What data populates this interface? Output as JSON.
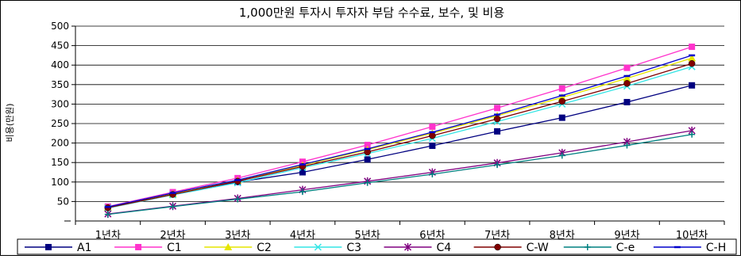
{
  "chart_data": {
    "type": "line",
    "title": "1,000만원 투자시 투자자 부담 수수료, 보수, 및 비용",
    "ylabel": "비용(만원)",
    "xlabel": "",
    "categories": [
      "1년차",
      "2년차",
      "3년차",
      "4년차",
      "5년차",
      "6년차",
      "7년차",
      "8년차",
      "9년차",
      "10년차"
    ],
    "ylim": [
      0,
      500
    ],
    "yticks": [
      50,
      100,
      150,
      200,
      250,
      300,
      350,
      400,
      450,
      500
    ],
    "grid": "horizontal",
    "legend_position": "bottom",
    "series": [
      {
        "name": "A1",
        "color": "#000080",
        "marker": "square",
        "values": [
          35,
          70,
          100,
          125,
          158,
          193,
          230,
          265,
          305,
          348
        ]
      },
      {
        "name": "C1",
        "color": "#ff33cc",
        "marker": "square",
        "values": [
          37,
          74,
          110,
          152,
          195,
          242,
          290,
          340,
          393,
          447
        ]
      },
      {
        "name": "C2",
        "color": "#e6e600",
        "marker": "triangle",
        "values": [
          34,
          69,
          104,
          143,
          183,
          225,
          270,
          317,
          366,
          418
        ]
      },
      {
        "name": "C3",
        "color": "#33e6e6",
        "marker": "x",
        "values": [
          33,
          67,
          98,
          137,
          173,
          212,
          255,
          300,
          346,
          396
        ]
      },
      {
        "name": "C4",
        "color": "#800080",
        "marker": "star",
        "values": [
          18,
          38,
          58,
          80,
          102,
          125,
          149,
          175,
          203,
          232
        ]
      },
      {
        "name": "C-W",
        "color": "#800000",
        "marker": "circle",
        "values": [
          34,
          68,
          102,
          140,
          177,
          219,
          262,
          307,
          353,
          404
        ]
      },
      {
        "name": "C-e",
        "color": "#008080",
        "marker": "plus",
        "values": [
          17,
          37,
          56,
          75,
          98,
          120,
          144,
          168,
          194,
          222
        ]
      },
      {
        "name": "C-H",
        "color": "#0000cc",
        "marker": "dash",
        "values": [
          36,
          72,
          105,
          145,
          185,
          228,
          273,
          322,
          372,
          425
        ]
      }
    ]
  }
}
